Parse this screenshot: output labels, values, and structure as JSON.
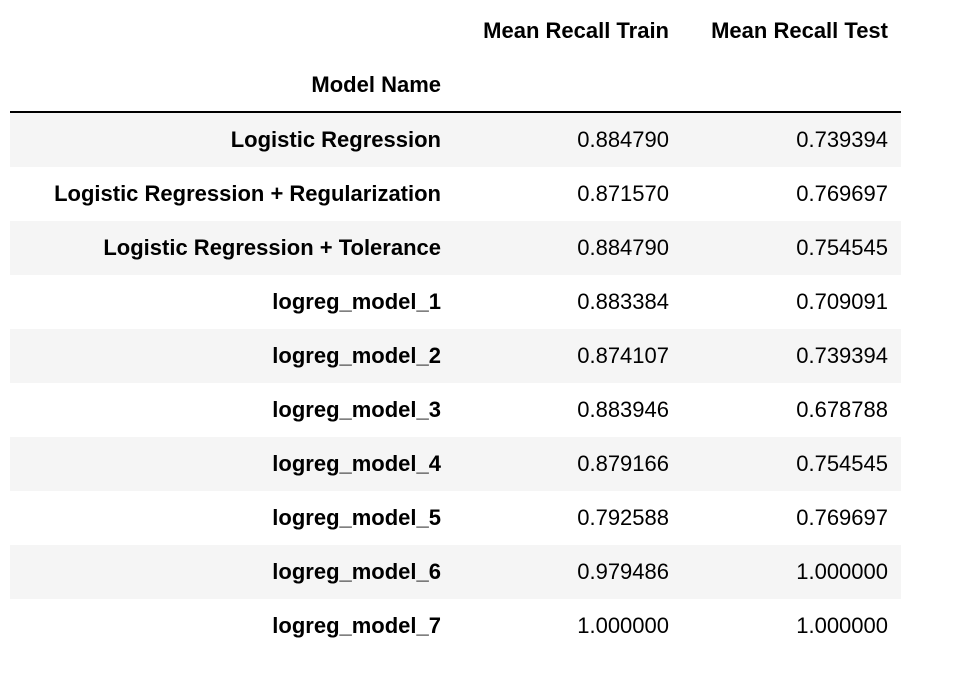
{
  "table": {
    "columns": [
      "Mean Recall Train",
      "Mean Recall Test"
    ],
    "index_name": "Model Name",
    "rows": [
      {
        "name": "Logistic Regression",
        "train": "0.884790",
        "test": "0.739394"
      },
      {
        "name": "Logistic Regression + Regularization",
        "train": "0.871570",
        "test": "0.769697"
      },
      {
        "name": "Logistic Regression + Tolerance",
        "train": "0.884790",
        "test": "0.754545"
      },
      {
        "name": "logreg_model_1",
        "train": "0.883384",
        "test": "0.709091"
      },
      {
        "name": "logreg_model_2",
        "train": "0.874107",
        "test": "0.739394"
      },
      {
        "name": "logreg_model_3",
        "train": "0.883946",
        "test": "0.678788"
      },
      {
        "name": "logreg_model_4",
        "train": "0.879166",
        "test": "0.754545"
      },
      {
        "name": "logreg_model_5",
        "train": "0.792588",
        "test": "0.769697"
      },
      {
        "name": "logreg_model_6",
        "train": "0.979486",
        "test": "1.000000"
      },
      {
        "name": "logreg_model_7",
        "train": "1.000000",
        "test": "1.000000"
      }
    ]
  }
}
